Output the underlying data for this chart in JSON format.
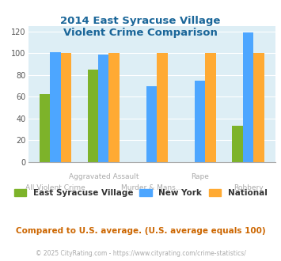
{
  "title": "2014 East Syracuse Village\nViolent Crime Comparison",
  "categories": [
    "All Violent Crime",
    "Aggravated Assault",
    "Murder & Mans...",
    "Rape",
    "Robbery"
  ],
  "xtick_upper": [
    "",
    "Aggravated Assault",
    "",
    "Rape",
    ""
  ],
  "xtick_lower": [
    "All Violent Crime",
    "",
    "Murder & Mans...",
    "",
    "Robbery"
  ],
  "series": {
    "East Syracuse Village": [
      62,
      85,
      null,
      null,
      33
    ],
    "New York": [
      101,
      99,
      70,
      75,
      119
    ],
    "National": [
      100,
      100,
      100,
      100,
      100
    ]
  },
  "colors": {
    "East Syracuse Village": "#7db32a",
    "New York": "#4da6ff",
    "National": "#ffaa33"
  },
  "ylim": [
    0,
    125
  ],
  "yticks": [
    0,
    20,
    40,
    60,
    80,
    100,
    120
  ],
  "background_color": "#ddeef5",
  "title_color": "#1a6699",
  "xtick_color": "#aaaaaa",
  "subtitle_text": "Compared to U.S. average. (U.S. average equals 100)",
  "subtitle_color": "#cc6600",
  "footer_text": "© 2025 CityRating.com - https://www.cityrating.com/crime-statistics/",
  "footer_color": "#aaaaaa",
  "bar_width": 0.22,
  "series_names": [
    "East Syracuse Village",
    "New York",
    "National"
  ]
}
